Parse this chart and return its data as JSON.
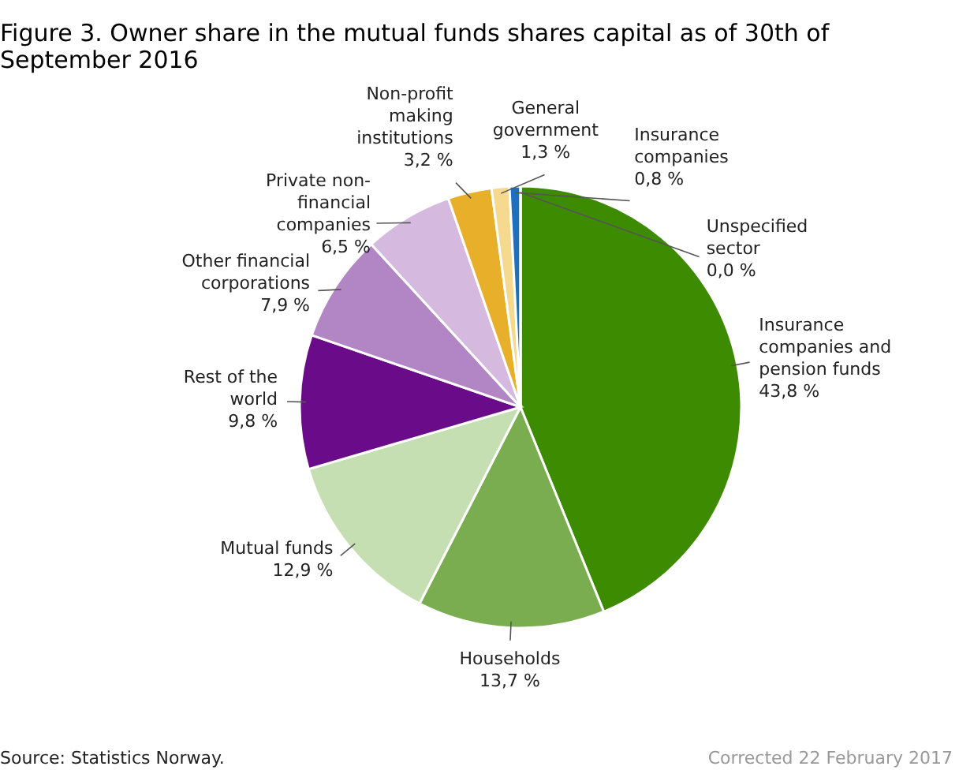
{
  "chart_data": {
    "type": "pie",
    "title": "Figure 3. Owner share in the mutual funds shares capital as of 30th of September 2016",
    "categories": [
      "Insurance companies and pension funds",
      "Households",
      "Mutual funds",
      "Rest of the world",
      "Other financial corporations",
      "Private non-financial companies",
      "Non-profit making institutions",
      "General government",
      "Insurance companies",
      "Unspecified sector"
    ],
    "values": [
      43.8,
      13.7,
      12.9,
      9.8,
      7.9,
      6.5,
      3.2,
      1.3,
      0.8,
      0.0
    ],
    "value_labels": [
      "43,8 %",
      "13,7 %",
      "12,9 %",
      "9,8 %",
      "7,9 %",
      "6,5 %",
      "3,2 %",
      "1,3 %",
      "0,8 %",
      "0,0 %"
    ],
    "colors": [
      "#3d8b00",
      "#7aad4f",
      "#c5dfb3",
      "#6a0c89",
      "#b285c5",
      "#d5b9df",
      "#e8b02a",
      "#f5d98e",
      "#1f6fc1",
      "#0a3f7a"
    ],
    "legend": false,
    "annotations": [
      "Source: Statistics Norway.",
      "Corrected 22 February 2017"
    ]
  }
}
